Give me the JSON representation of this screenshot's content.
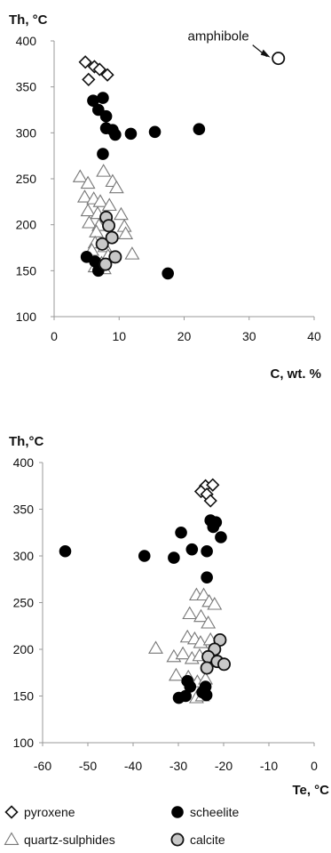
{
  "chart_data": [
    {
      "type": "scatter",
      "ylabel": "Th, °C",
      "xlabel": "C, wt. %",
      "xlim": [
        0,
        40
      ],
      "ylim": [
        100,
        400
      ],
      "xticks": [
        "0",
        "10",
        "20",
        "30",
        "40"
      ],
      "yticks": [
        "100",
        "150",
        "200",
        "250",
        "300",
        "350",
        "400"
      ],
      "annotation": {
        "text": "amphibole",
        "x": 34.5,
        "y": 381
      },
      "series": [
        {
          "name": "pyroxene",
          "marker": "diamond",
          "points": [
            [
              4.8,
              377
            ],
            [
              6.2,
              372
            ],
            [
              7.0,
              369
            ],
            [
              8.2,
              363
            ],
            [
              5.3,
              358
            ]
          ]
        },
        {
          "name": "scheelite",
          "marker": "filled-circle",
          "points": [
            [
              6.0,
              335
            ],
            [
              7.5,
              338
            ],
            [
              6.8,
              325
            ],
            [
              8.0,
              318
            ],
            [
              8.0,
              305
            ],
            [
              9.0,
              303
            ],
            [
              9.4,
              298
            ],
            [
              7.5,
              277
            ],
            [
              11.8,
              299
            ],
            [
              15.5,
              301
            ],
            [
              22.3,
              304
            ],
            [
              5.0,
              165
            ],
            [
              6.3,
              160
            ],
            [
              6.8,
              150
            ],
            [
              17.5,
              147
            ]
          ]
        },
        {
          "name": "quartz-sulphides",
          "marker": "triangle",
          "points": [
            [
              4.0,
              252
            ],
            [
              5.2,
              245
            ],
            [
              7.6,
              258
            ],
            [
              9.0,
              247
            ],
            [
              9.6,
              240
            ],
            [
              4.7,
              230
            ],
            [
              6.1,
              228
            ],
            [
              7.1,
              225
            ],
            [
              8.5,
              221
            ],
            [
              5.2,
              215
            ],
            [
              6.7,
              212
            ],
            [
              10.3,
              211
            ],
            [
              5.4,
              202
            ],
            [
              6.9,
              199
            ],
            [
              10.8,
              198
            ],
            [
              6.5,
              192
            ],
            [
              11.0,
              190
            ],
            [
              6.3,
              180
            ],
            [
              7.8,
              176
            ],
            [
              5.8,
              172
            ],
            [
              8.3,
              166
            ],
            [
              12.0,
              168
            ],
            [
              7.3,
              158
            ],
            [
              7.7,
              152
            ],
            [
              6.3,
              154
            ]
          ]
        },
        {
          "name": "calcite",
          "marker": "gray-circle",
          "points": [
            [
              8.0,
              208
            ],
            [
              8.4,
              199
            ],
            [
              8.9,
              186
            ],
            [
              7.4,
              179
            ],
            [
              9.4,
              165
            ],
            [
              7.9,
              157
            ]
          ]
        },
        {
          "name": "amphibole",
          "marker": "open-circle",
          "points": [
            [
              34.5,
              381
            ]
          ]
        }
      ]
    },
    {
      "type": "scatter",
      "ylabel": "Th,°C",
      "xlabel": "Te, °C",
      "xlim": [
        -60,
        0
      ],
      "ylim": [
        100,
        400
      ],
      "xticks": [
        "-60",
        "-50",
        "-40",
        "-30",
        "-20",
        "-10",
        "0"
      ],
      "yticks": [
        "100",
        "150",
        "200",
        "250",
        "300",
        "350",
        "400"
      ],
      "series": [
        {
          "name": "pyroxene",
          "marker": "diamond",
          "points": [
            [
              -24.0,
              375
            ],
            [
              -22.4,
              376
            ],
            [
              -25.0,
              369
            ],
            [
              -23.7,
              366
            ],
            [
              -22.9,
              359
            ]
          ]
        },
        {
          "name": "scheelite",
          "marker": "filled-circle",
          "points": [
            [
              -55.0,
              305
            ],
            [
              -37.5,
              300
            ],
            [
              -31.0,
              298
            ],
            [
              -29.4,
              325
            ],
            [
              -27.0,
              307
            ],
            [
              -23.7,
              305
            ],
            [
              -22.9,
              338
            ],
            [
              -21.7,
              336
            ],
            [
              -22.3,
              331
            ],
            [
              -20.6,
              320
            ],
            [
              -23.7,
              277
            ],
            [
              -28.0,
              166
            ],
            [
              -27.4,
              160
            ],
            [
              -24.0,
              160
            ],
            [
              -29.9,
              148
            ],
            [
              -28.4,
              150
            ],
            [
              -23.8,
              151
            ],
            [
              -24.7,
              154
            ]
          ]
        },
        {
          "name": "quartz-sulphides",
          "marker": "triangle",
          "points": [
            [
              -35.0,
              201
            ],
            [
              -26.0,
              258
            ],
            [
              -24.4,
              258
            ],
            [
              -23.2,
              251
            ],
            [
              -22.0,
              248
            ],
            [
              -27.5,
              238
            ],
            [
              -25.0,
              235
            ],
            [
              -23.4,
              228
            ],
            [
              -28.0,
              213
            ],
            [
              -26.4,
              211
            ],
            [
              -25.1,
              207
            ],
            [
              -22.9,
              210
            ],
            [
              -31.0,
              192
            ],
            [
              -29.0,
              195
            ],
            [
              -27.0,
              190
            ],
            [
              -25.3,
              193
            ],
            [
              -30.5,
              172
            ],
            [
              -27.8,
              170
            ],
            [
              -25.8,
              165
            ],
            [
              -24.0,
              168
            ],
            [
              -26.0,
              148
            ],
            [
              -24.7,
              150
            ]
          ]
        },
        {
          "name": "calcite",
          "marker": "gray-circle",
          "points": [
            [
              -20.8,
              210
            ],
            [
              -22.0,
              200
            ],
            [
              -23.4,
              192
            ],
            [
              -21.4,
              187
            ],
            [
              -19.9,
              184
            ],
            [
              -23.7,
              180
            ]
          ]
        }
      ]
    }
  ],
  "legend": [
    {
      "label": "pyroxene",
      "marker": "diamond"
    },
    {
      "label": "scheelite",
      "marker": "filled-circle"
    },
    {
      "label": "quartz-sulphides",
      "marker": "triangle"
    },
    {
      "label": "calcite",
      "marker": "gray-circle"
    }
  ],
  "colors": {
    "axis": "#999999",
    "marker_edge": "#111111",
    "calcite_fill": "#c8c8c8",
    "triangle_edge": "#777777"
  }
}
